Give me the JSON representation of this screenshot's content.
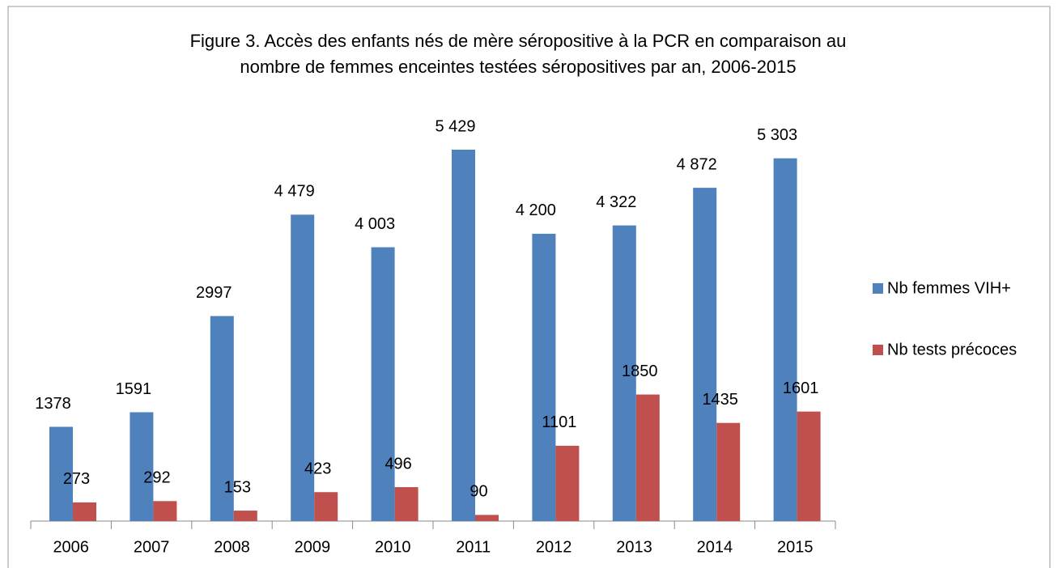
{
  "chart_data": {
    "type": "bar",
    "title": [
      "Figure 3. Accès des enfants nés de mère séropositive à la PCR en comparaison au",
      "nombre de femmes enceintes testées séropositives par an, 2006-2015"
    ],
    "categories": [
      "2006",
      "2007",
      "2008",
      "2009",
      "2010",
      "2011",
      "2012",
      "2013",
      "2014",
      "2015"
    ],
    "series": [
      {
        "name": "Nb femmes VIH+",
        "color": "#4f81bd",
        "values": [
          1378,
          1591,
          2997,
          4479,
          4003,
          5429,
          4200,
          4322,
          4872,
          5303
        ],
        "value_labels": [
          "1378",
          "1591",
          "2997",
          "4 479",
          "4 003",
          "5 429",
          "4 200",
          "4 322",
          "4 872",
          "5 303"
        ]
      },
      {
        "name": "Nb tests précoces",
        "color": "#c0504d",
        "values": [
          273,
          292,
          153,
          423,
          496,
          90,
          1101,
          1850,
          1435,
          1601
        ],
        "value_labels": [
          "273",
          "292",
          "153",
          "423",
          "496",
          "90",
          "1101",
          "1850",
          "1435",
          "1601"
        ]
      }
    ],
    "legend": "right"
  }
}
